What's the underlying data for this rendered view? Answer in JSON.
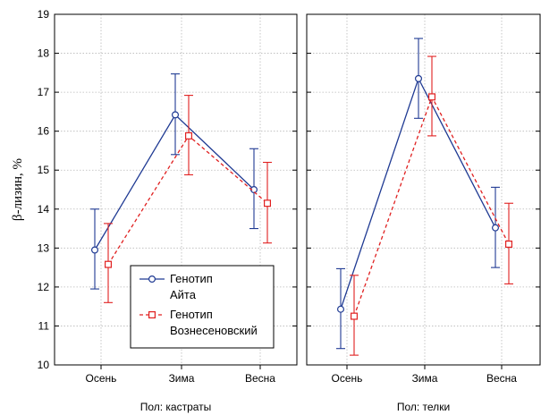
{
  "chart_data": {
    "type": "line",
    "ylabel": "β-лизин, %",
    "ylim": [
      10,
      19
    ],
    "yticks": [
      10,
      11,
      12,
      13,
      14,
      15,
      16,
      17,
      18,
      19
    ],
    "categories": [
      "Осень",
      "Зима",
      "Весна"
    ],
    "grid": true,
    "legend_position": "bottom-center of left panel",
    "panels": [
      {
        "label": "Пол: кастраты",
        "series": [
          {
            "legend": [
              "Генотип",
              "Айта"
            ],
            "color": "#1f3a93",
            "marker": "circle",
            "dash": "solid",
            "values": [
              12.95,
              16.42,
              14.5
            ],
            "err_low": [
              11.95,
              15.4,
              13.5
            ],
            "err_high": [
              14.0,
              17.47,
              15.55
            ]
          },
          {
            "legend": [
              "Генотип",
              "Вознесеновский"
            ],
            "color": "#e02020",
            "marker": "square",
            "dash": "dashed",
            "values": [
              12.58,
              15.88,
              14.15
            ],
            "err_low": [
              11.6,
              14.88,
              13.13
            ],
            "err_high": [
              13.63,
              16.92,
              15.2
            ]
          }
        ]
      },
      {
        "label": "Пол: телки",
        "series": [
          {
            "legend": [
              "Генотип",
              "Айта"
            ],
            "color": "#1f3a93",
            "marker": "circle",
            "dash": "solid",
            "values": [
              11.43,
              17.35,
              13.52
            ],
            "err_low": [
              10.42,
              16.33,
              12.5
            ],
            "err_high": [
              12.47,
              18.38,
              14.56
            ]
          },
          {
            "legend": [
              "Генотип",
              "Вознесеновский"
            ],
            "color": "#e02020",
            "marker": "square",
            "dash": "dashed",
            "values": [
              11.25,
              16.88,
              13.1
            ],
            "err_low": [
              10.25,
              15.88,
              12.08
            ],
            "err_high": [
              12.3,
              17.92,
              14.15
            ]
          }
        ]
      }
    ]
  }
}
